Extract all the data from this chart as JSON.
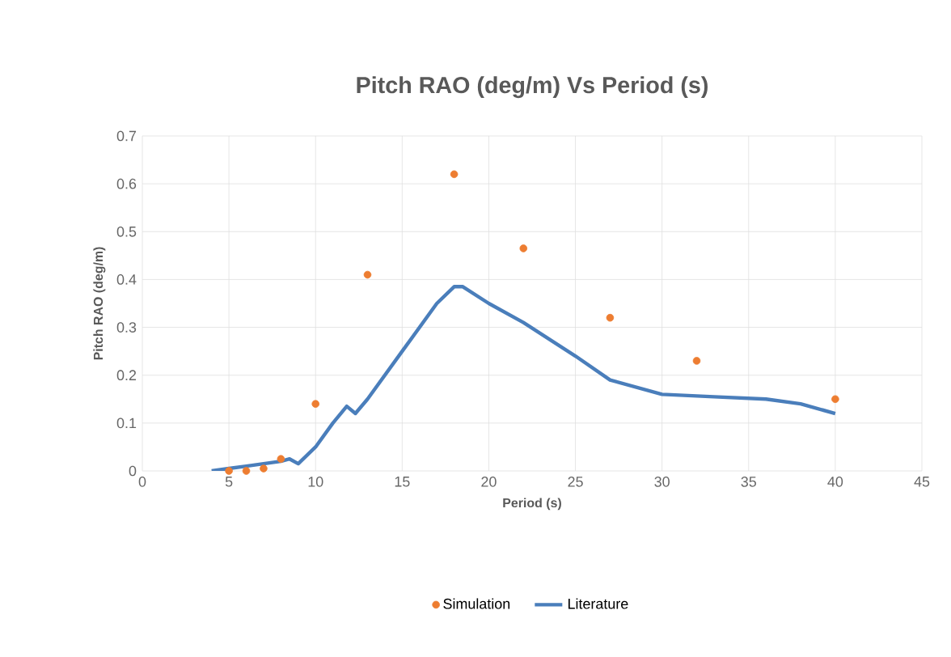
{
  "chart_data": {
    "type": "scatter",
    "title": "Pitch RAO (deg/m) Vs Period (s)",
    "xlabel": "Period (s)",
    "ylabel": "Pitch RAO (deg/m)",
    "xlim": [
      0,
      45
    ],
    "xticks": [
      0,
      5,
      10,
      15,
      20,
      25,
      30,
      35,
      40,
      45
    ],
    "ylim": [
      0,
      0.7
    ],
    "yticks": [
      0,
      0.1,
      0.2,
      0.3,
      0.4,
      0.5,
      0.6,
      0.7
    ],
    "grid": true,
    "legend": "bottom",
    "series": [
      {
        "name": "Simulation",
        "marker": "circle",
        "color": "#ed7d31",
        "x": [
          5,
          6,
          7,
          8,
          10,
          13,
          18,
          22,
          27,
          32,
          40
        ],
        "values": [
          0,
          0,
          0.005,
          0.025,
          0.14,
          0.41,
          0.62,
          0.465,
          0.32,
          0.23,
          0.15
        ]
      },
      {
        "name": "Literature",
        "type": "line",
        "marker": "none",
        "color": "#4a7ebb",
        "x": [
          4,
          5,
          6,
          7,
          8,
          8.5,
          9,
          10,
          11,
          11.8,
          12.3,
          13,
          15,
          17,
          18,
          18.5,
          20,
          22,
          25,
          27,
          30,
          33,
          36,
          38,
          40
        ],
        "values": [
          0,
          0.005,
          0.01,
          0.015,
          0.02,
          0.025,
          0.015,
          0.05,
          0.1,
          0.135,
          0.12,
          0.15,
          0.25,
          0.35,
          0.385,
          0.385,
          0.35,
          0.31,
          0.24,
          0.19,
          0.16,
          0.155,
          0.15,
          0.14,
          0.12
        ]
      }
    ]
  }
}
